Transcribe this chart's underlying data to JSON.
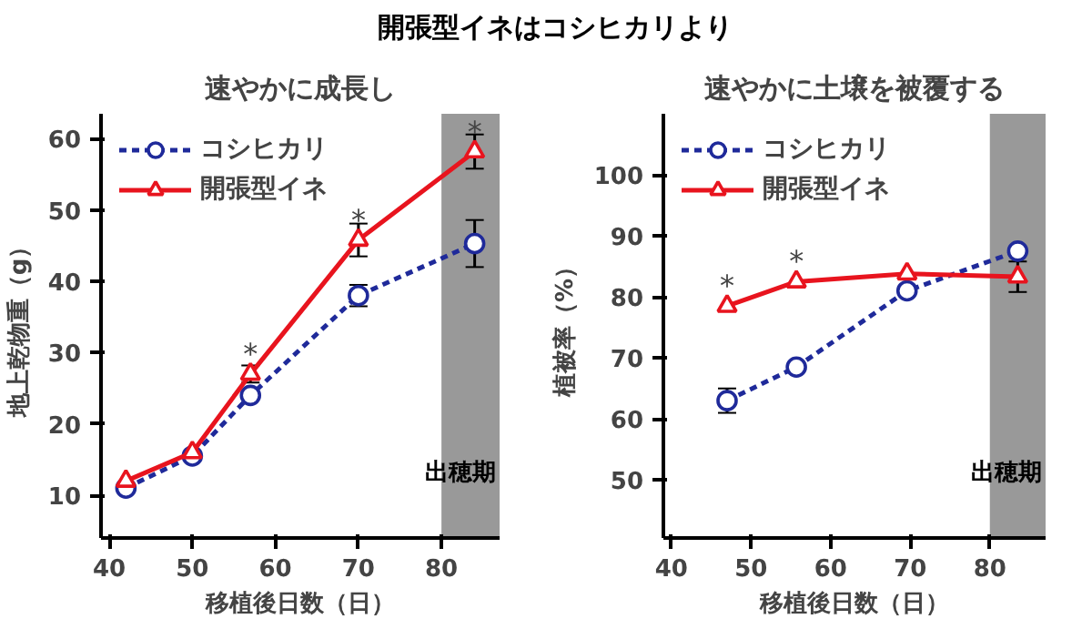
{
  "chart_data": [
    {
      "type": "line",
      "annotations": [
        "開張型イネはコシヒカリより",
        {
          "text": "*",
          "x": 57,
          "y": 27
        },
        {
          "text": "*",
          "x": 70,
          "y": 45.8
        },
        {
          "text": "*",
          "x": 84,
          "y": 58.2
        }
      ],
      "title": "速やかに成長し",
      "xlabel": "移植後日数（日）",
      "ylabel": "地上乾物重（g）",
      "x": [
        42,
        50,
        57,
        70,
        84
      ],
      "xlim": [
        39,
        87
      ],
      "ylim": [
        4,
        63.5
      ],
      "xticks": [
        40,
        50,
        60,
        70,
        80
      ],
      "yticks": [
        10,
        20,
        30,
        40,
        50,
        60
      ],
      "grid": false,
      "legend": "top left",
      "series": [
        {
          "name": "コシヒカリ",
          "color": "#1f2a9a",
          "marker": "circle",
          "line_style": "dashed",
          "values": [
            11,
            15.5,
            24,
            38,
            45.3
          ],
          "errors": [
            null,
            null,
            null,
            1.5,
            3.3
          ]
        },
        {
          "name": "開張型イネ",
          "color": "#e8141e",
          "marker": "triangle",
          "line_style": "solid",
          "values": [
            12,
            16,
            27,
            45.8,
            58.2
          ],
          "errors": [
            null,
            null,
            1.2,
            2.3,
            2.4
          ]
        }
      ],
      "bands": [
        {
          "axis": "x",
          "from": 80,
          "to": 87,
          "label": "出穂期",
          "color": "#999999"
        }
      ]
    },
    {
      "type": "line",
      "annotations": [
        {
          "text": "*",
          "x": 47,
          "y": 78.5
        },
        {
          "text": "*",
          "x": 55.7,
          "y": 82.5
        }
      ],
      "title": "速やかに土壌を被覆する",
      "xlabel": "移植後日数（日）",
      "ylabel": "植被率（%）",
      "x": [
        47,
        55.7,
        69.6,
        83.5
      ],
      "xlim": [
        39,
        87
      ],
      "ylim": [
        40.5,
        110
      ],
      "xticks": [
        40,
        50,
        60,
        70,
        80
      ],
      "yticks": [
        50,
        60,
        70,
        80,
        90,
        100
      ],
      "grid": false,
      "legend": "top left",
      "series": [
        {
          "name": "コシヒカリ",
          "color": "#1f2a9a",
          "marker": "circle",
          "line_style": "dashed",
          "values": [
            63,
            68.5,
            81,
            87.5
          ],
          "errors": [
            2.0,
            null,
            null,
            null
          ]
        },
        {
          "name": "開張型イネ",
          "color": "#e8141e",
          "marker": "triangle",
          "line_style": "solid",
          "values": [
            78.5,
            82.5,
            83.8,
            83.3
          ],
          "errors": [
            null,
            null,
            null,
            2.5
          ]
        }
      ],
      "bands": [
        {
          "axis": "x",
          "from": 80,
          "to": 87,
          "label": "出穂期",
          "color": "#999999"
        }
      ]
    }
  ]
}
